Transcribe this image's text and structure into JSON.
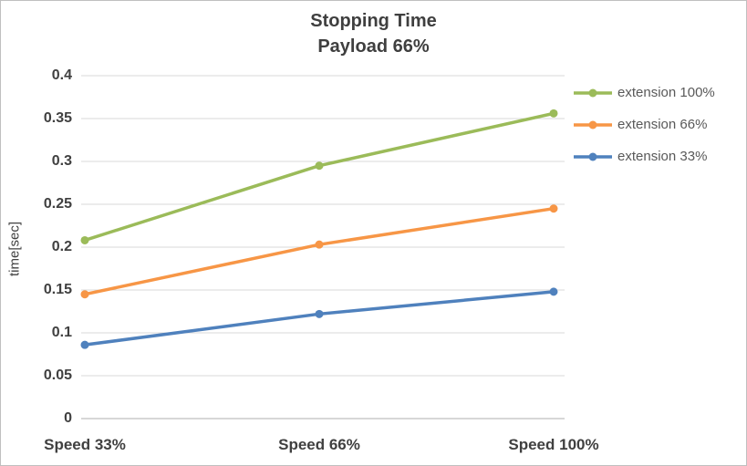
{
  "frame": {
    "background": "#FFFFFF",
    "border_color": "#BFBFBF"
  },
  "chart_data": {
    "type": "line",
    "title": "Stopping Time",
    "subtitle": "Payload 66%",
    "xlabel": "",
    "ylabel": "time[sec]",
    "categories": [
      "Speed 33%",
      "Speed 66%",
      "Speed 100%"
    ],
    "series": [
      {
        "name": "extension 100%",
        "color": "#9BBB59",
        "values": [
          0.208,
          0.295,
          0.356
        ]
      },
      {
        "name": "extension 66%",
        "color": "#F79646",
        "values": [
          0.145,
          0.203,
          0.245
        ]
      },
      {
        "name": "extension 33%",
        "color": "#4F81BD",
        "values": [
          0.086,
          0.122,
          0.148
        ]
      }
    ],
    "ylim": [
      0,
      0.4
    ],
    "yticks": [
      0,
      0.05,
      0.1,
      0.15,
      0.2,
      0.25,
      0.3,
      0.35,
      0.4
    ],
    "ytick_labels": [
      "0",
      "0.05",
      "0.1",
      "0.15",
      "0.2",
      "0.25",
      "0.3",
      "0.35",
      "0.4"
    ],
    "grid": true,
    "legend_position": "right",
    "gridline_color": "#D9D9D9",
    "axis_color": "#BFBFBF",
    "text_color": "#404040"
  }
}
